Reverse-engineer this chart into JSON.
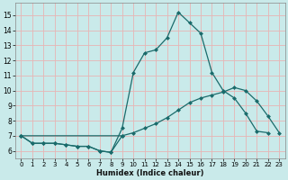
{
  "xlabel": "Humidex (Indice chaleur)",
  "bg_color": "#c9eaea",
  "grid_color": "#e8b4b4",
  "line_color": "#1a6b6b",
  "xlim": [
    -0.5,
    23.5
  ],
  "ylim": [
    5.5,
    15.8
  ],
  "xticks": [
    0,
    1,
    2,
    3,
    4,
    5,
    6,
    7,
    8,
    9,
    10,
    11,
    12,
    13,
    14,
    15,
    16,
    17,
    18,
    19,
    20,
    21,
    22,
    23
  ],
  "yticks": [
    6,
    7,
    8,
    9,
    10,
    11,
    12,
    13,
    14,
    15
  ],
  "line1_x": [
    0,
    1,
    2,
    3,
    4,
    5,
    6,
    7,
    8,
    9,
    10,
    11,
    12,
    13,
    14,
    15,
    16,
    17,
    18,
    19,
    20,
    21,
    22
  ],
  "line1_y": [
    7.0,
    6.5,
    6.5,
    6.5,
    6.4,
    6.3,
    6.3,
    6.0,
    5.9,
    7.5,
    11.2,
    12.5,
    12.7,
    13.5,
    15.2,
    14.5,
    13.8,
    11.2,
    10.0,
    9.5,
    8.5,
    7.3,
    7.2
  ],
  "line2_x": [
    0,
    1,
    2,
    3,
    4,
    5,
    6,
    7,
    8,
    9
  ],
  "line2_y": [
    7.0,
    6.5,
    6.5,
    6.5,
    6.4,
    6.3,
    6.3,
    6.0,
    5.9,
    7.0
  ],
  "line3_x": [
    0,
    9,
    10,
    11,
    12,
    13,
    14,
    15,
    16,
    17,
    18,
    19,
    20,
    21,
    22,
    23
  ],
  "line3_y": [
    7.0,
    7.0,
    7.2,
    7.5,
    7.8,
    8.2,
    8.7,
    9.2,
    9.5,
    9.7,
    9.9,
    10.2,
    10.0,
    9.3,
    8.3,
    7.2
  ],
  "markersize": 2.5
}
